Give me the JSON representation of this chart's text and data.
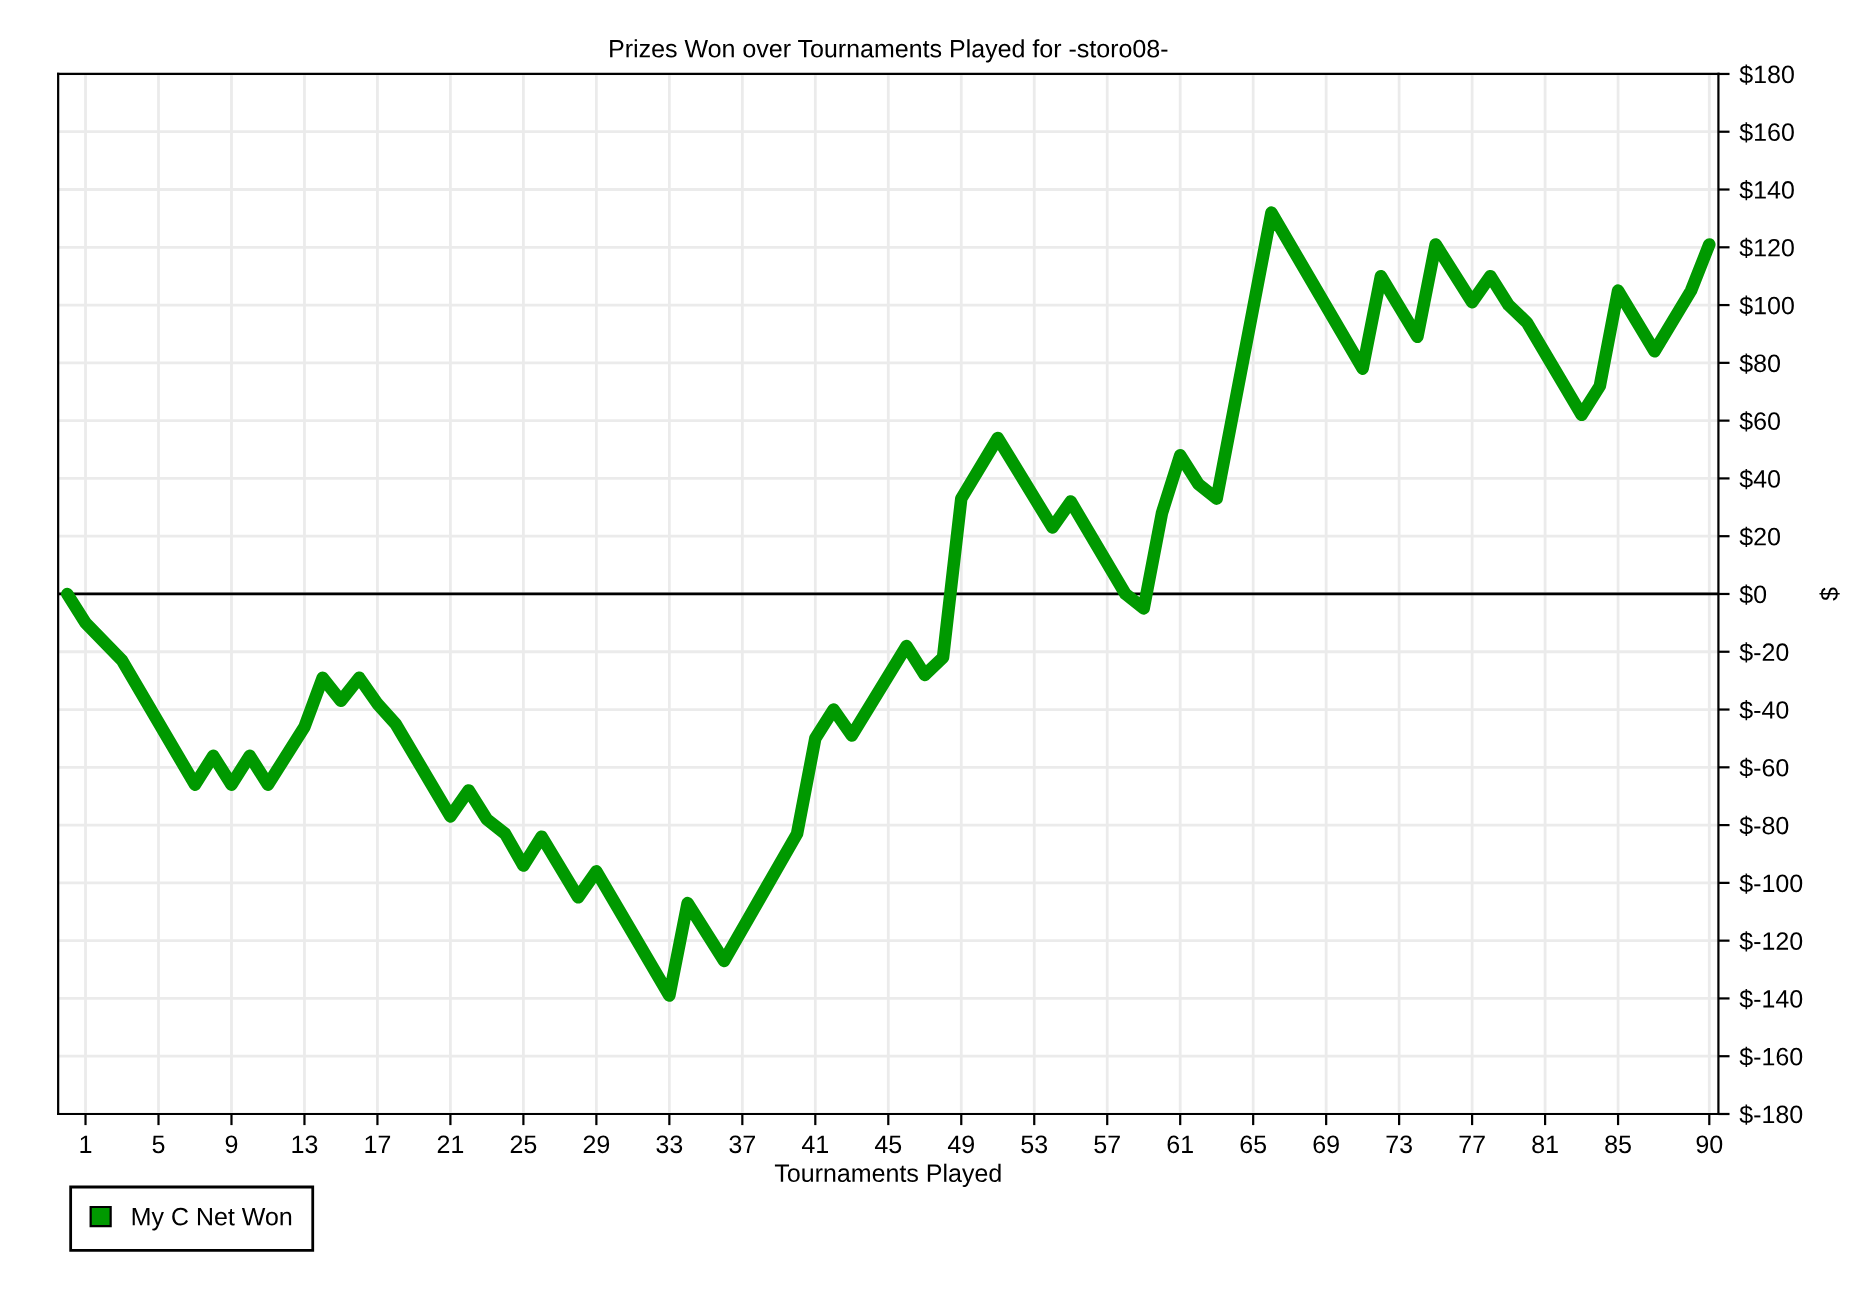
{
  "chart_data": {
    "type": "line",
    "title": "Prizes Won over Tournaments Played for -storo08-",
    "xlabel": "Tournaments Played",
    "ylabel": "$",
    "series": [
      {
        "name": "My C Net Won",
        "color": "#009900",
        "x": [
          0,
          1,
          3,
          7,
          8,
          9,
          10,
          11,
          13,
          14,
          15,
          16,
          17,
          18,
          21,
          22,
          23,
          24,
          25,
          26,
          28,
          29,
          33,
          34,
          36,
          40,
          41,
          42,
          43,
          46,
          47,
          48,
          49,
          51,
          54,
          55,
          58,
          59,
          60,
          61,
          62,
          63,
          66,
          71,
          72,
          74,
          75,
          77,
          78,
          79,
          80,
          83,
          84,
          85,
          87,
          89,
          90
        ],
        "values": [
          0,
          -10,
          -23,
          -66,
          -56,
          -66,
          -56,
          -66,
          -46,
          -29,
          -37,
          -29,
          -38,
          -45,
          -77,
          -68,
          -78,
          -83,
          -94,
          -84,
          -105,
          -96,
          -139,
          -107,
          -127,
          -83,
          -50,
          -40,
          -49,
          -18,
          -28,
          -22,
          33,
          54,
          23,
          32,
          0,
          -5,
          28,
          48,
          38,
          33,
          132,
          78,
          110,
          89,
          121,
          101,
          110,
          100,
          94,
          62,
          72,
          105,
          84,
          105,
          121
        ]
      }
    ],
    "xlim": [
      -0.5,
      90.5
    ],
    "xticks": [
      1,
      5,
      9,
      13,
      17,
      21,
      25,
      29,
      33,
      37,
      41,
      45,
      49,
      53,
      57,
      61,
      65,
      69,
      73,
      77,
      81,
      85,
      90
    ],
    "ylim": [
      -180,
      180
    ],
    "yticks": [
      {
        "value": -180,
        "label": "$-180"
      },
      {
        "value": -160,
        "label": "$-160"
      },
      {
        "value": -140,
        "label": "$-140"
      },
      {
        "value": -120,
        "label": "$-120"
      },
      {
        "value": -100,
        "label": "$-100"
      },
      {
        "value": -80,
        "label": "$-80"
      },
      {
        "value": -60,
        "label": "$-60"
      },
      {
        "value": -40,
        "label": "$-40"
      },
      {
        "value": -20,
        "label": "$-20"
      },
      {
        "value": 0,
        "label": "$0"
      },
      {
        "value": 20,
        "label": "$20"
      },
      {
        "value": 40,
        "label": "$40"
      },
      {
        "value": 60,
        "label": "$60"
      },
      {
        "value": 80,
        "label": "$80"
      },
      {
        "value": 100,
        "label": "$100"
      },
      {
        "value": 120,
        "label": "$120"
      },
      {
        "value": 140,
        "label": "$140"
      },
      {
        "value": 160,
        "label": "$160"
      },
      {
        "value": 180,
        "label": "$180"
      }
    ],
    "ref_lines": [
      {
        "axis": "y",
        "value": 0,
        "color": "#000000"
      }
    ],
    "grid": true,
    "legend": "bottom left",
    "marker": "none",
    "line_style": "solid"
  }
}
